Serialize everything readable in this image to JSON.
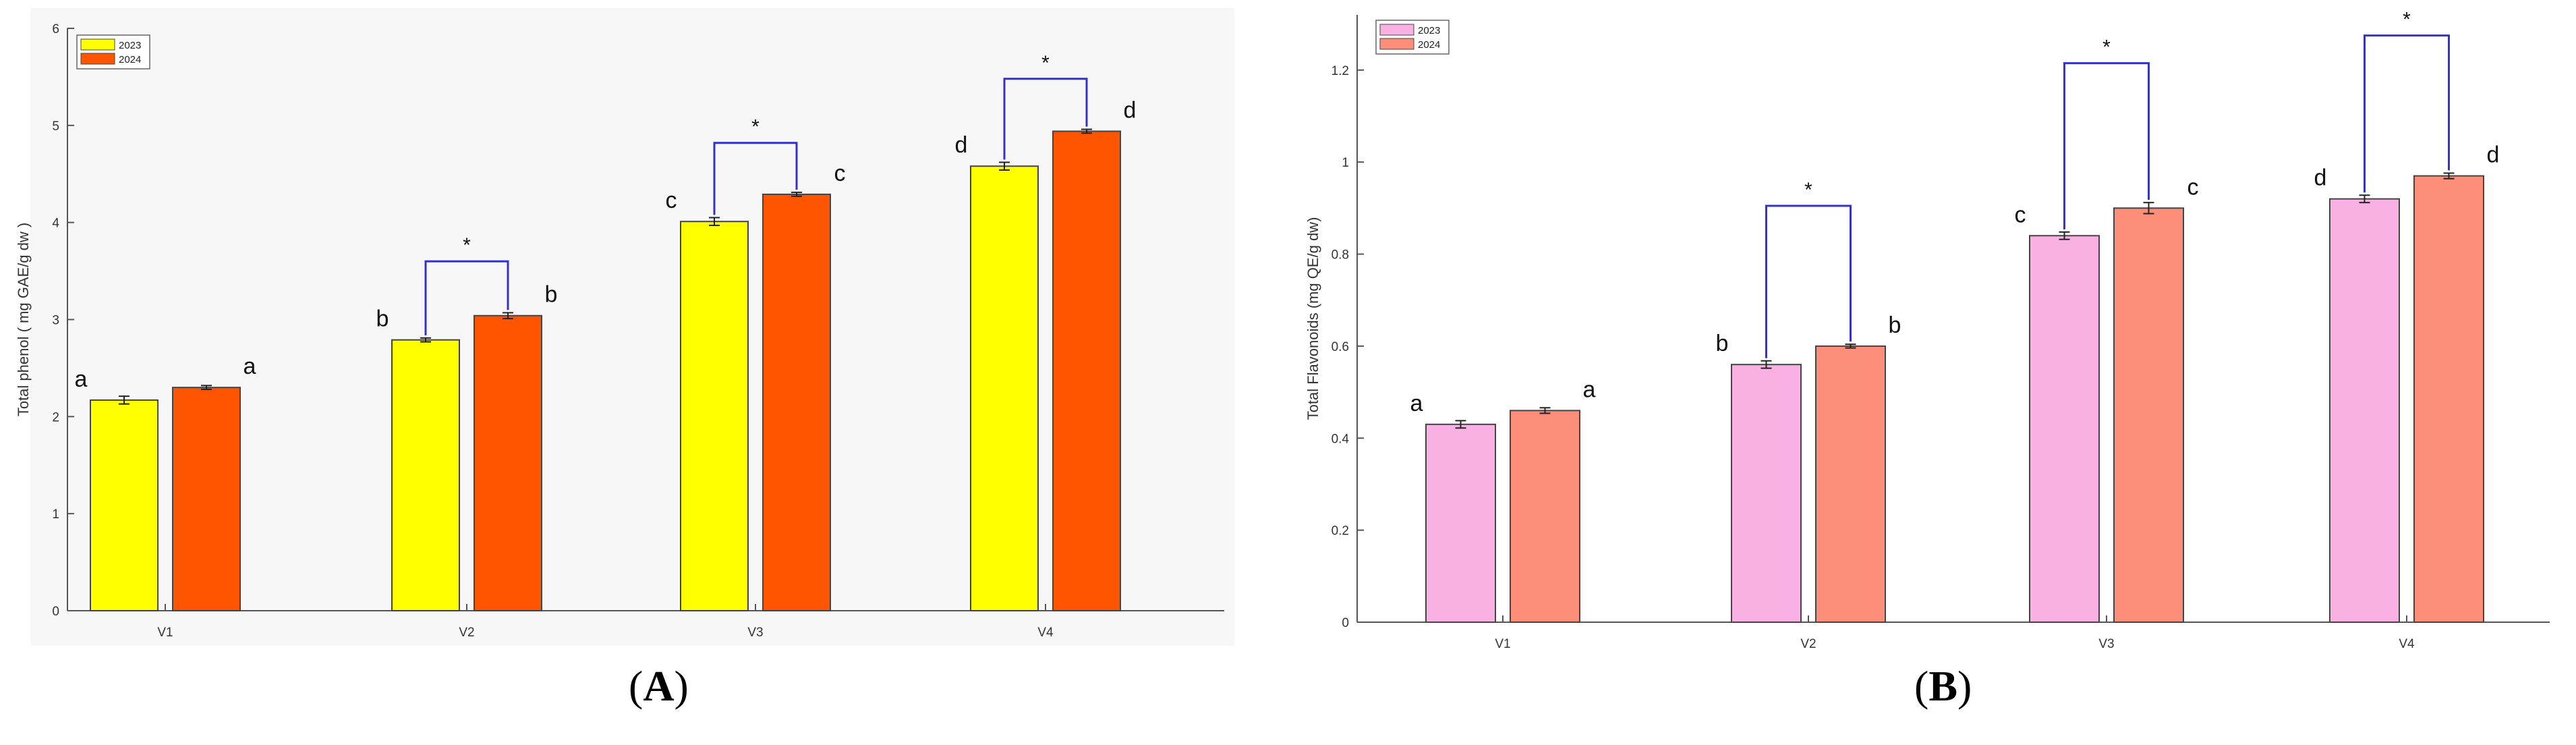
{
  "panels": [
    {
      "label": "A",
      "chart_data": {
        "type": "bar",
        "categories": [
          "V1",
          "V2",
          "V3",
          "V4"
        ],
        "series": [
          {
            "name": "2023",
            "color": "#ffff00",
            "values": [
              2.17,
              2.79,
              4.01,
              4.58
            ],
            "errors": [
              0.04,
              0.02,
              0.04,
              0.04
            ]
          },
          {
            "name": "2024",
            "color": "#ff5500",
            "values": [
              2.3,
              3.04,
              4.29,
              4.94
            ],
            "errors": [
              0.02,
              0.03,
              0.02,
              0.02
            ]
          }
        ],
        "letters": [
          [
            "a",
            "a"
          ],
          [
            "b",
            "b"
          ],
          [
            "c",
            "c"
          ],
          [
            "d",
            "d"
          ]
        ],
        "significance": [
          {
            "category": "V2",
            "label": "*",
            "y": 3.6
          },
          {
            "category": "V3",
            "label": "*",
            "y": 4.82
          },
          {
            "category": "V4",
            "label": "*",
            "y": 5.48
          }
        ],
        "ylabel": "Total phenol ( mg GAE/g dw )",
        "xlabel": "",
        "ylim": [
          0,
          6
        ],
        "yticks": [
          0,
          1,
          2,
          3,
          4,
          5,
          6
        ],
        "legend_position": "top-left",
        "bracket_color": "#3333cc"
      }
    },
    {
      "label": "B",
      "chart_data": {
        "type": "bar",
        "categories": [
          "V1",
          "V2",
          "V3",
          "V4"
        ],
        "series": [
          {
            "name": "2023",
            "color": "#f9b1e4",
            "values": [
              0.43,
              0.56,
              0.84,
              0.92
            ],
            "errors": [
              0.008,
              0.008,
              0.008,
              0.008
            ]
          },
          {
            "name": "2024",
            "color": "#fc8e7a",
            "values": [
              0.46,
              0.6,
              0.9,
              0.97
            ],
            "errors": [
              0.006,
              0.004,
              0.012,
              0.006
            ]
          }
        ],
        "letters": [
          [
            "a",
            "a"
          ],
          [
            "b",
            "b"
          ],
          [
            "c",
            "c"
          ],
          [
            "d",
            "d"
          ]
        ],
        "significance": [
          {
            "category": "V2",
            "label": "*",
            "y": 0.905
          },
          {
            "category": "V3",
            "label": "*",
            "y": 1.215
          },
          {
            "category": "V4",
            "label": "*",
            "y": 1.275
          }
        ],
        "ylabel": "Total Flavonoids (mg QE/g dw)",
        "xlabel": "",
        "ylim": [
          0,
          1.32
        ],
        "yticks": [
          0,
          0.2,
          0.4,
          0.6,
          0.8,
          1,
          1.2
        ],
        "yticklabels": [
          "0",
          "0.2",
          "0.4",
          "0.6",
          "0.8",
          "1",
          "1.2"
        ],
        "legend_position": "top-left",
        "bracket_color": "#3333cc"
      }
    }
  ]
}
